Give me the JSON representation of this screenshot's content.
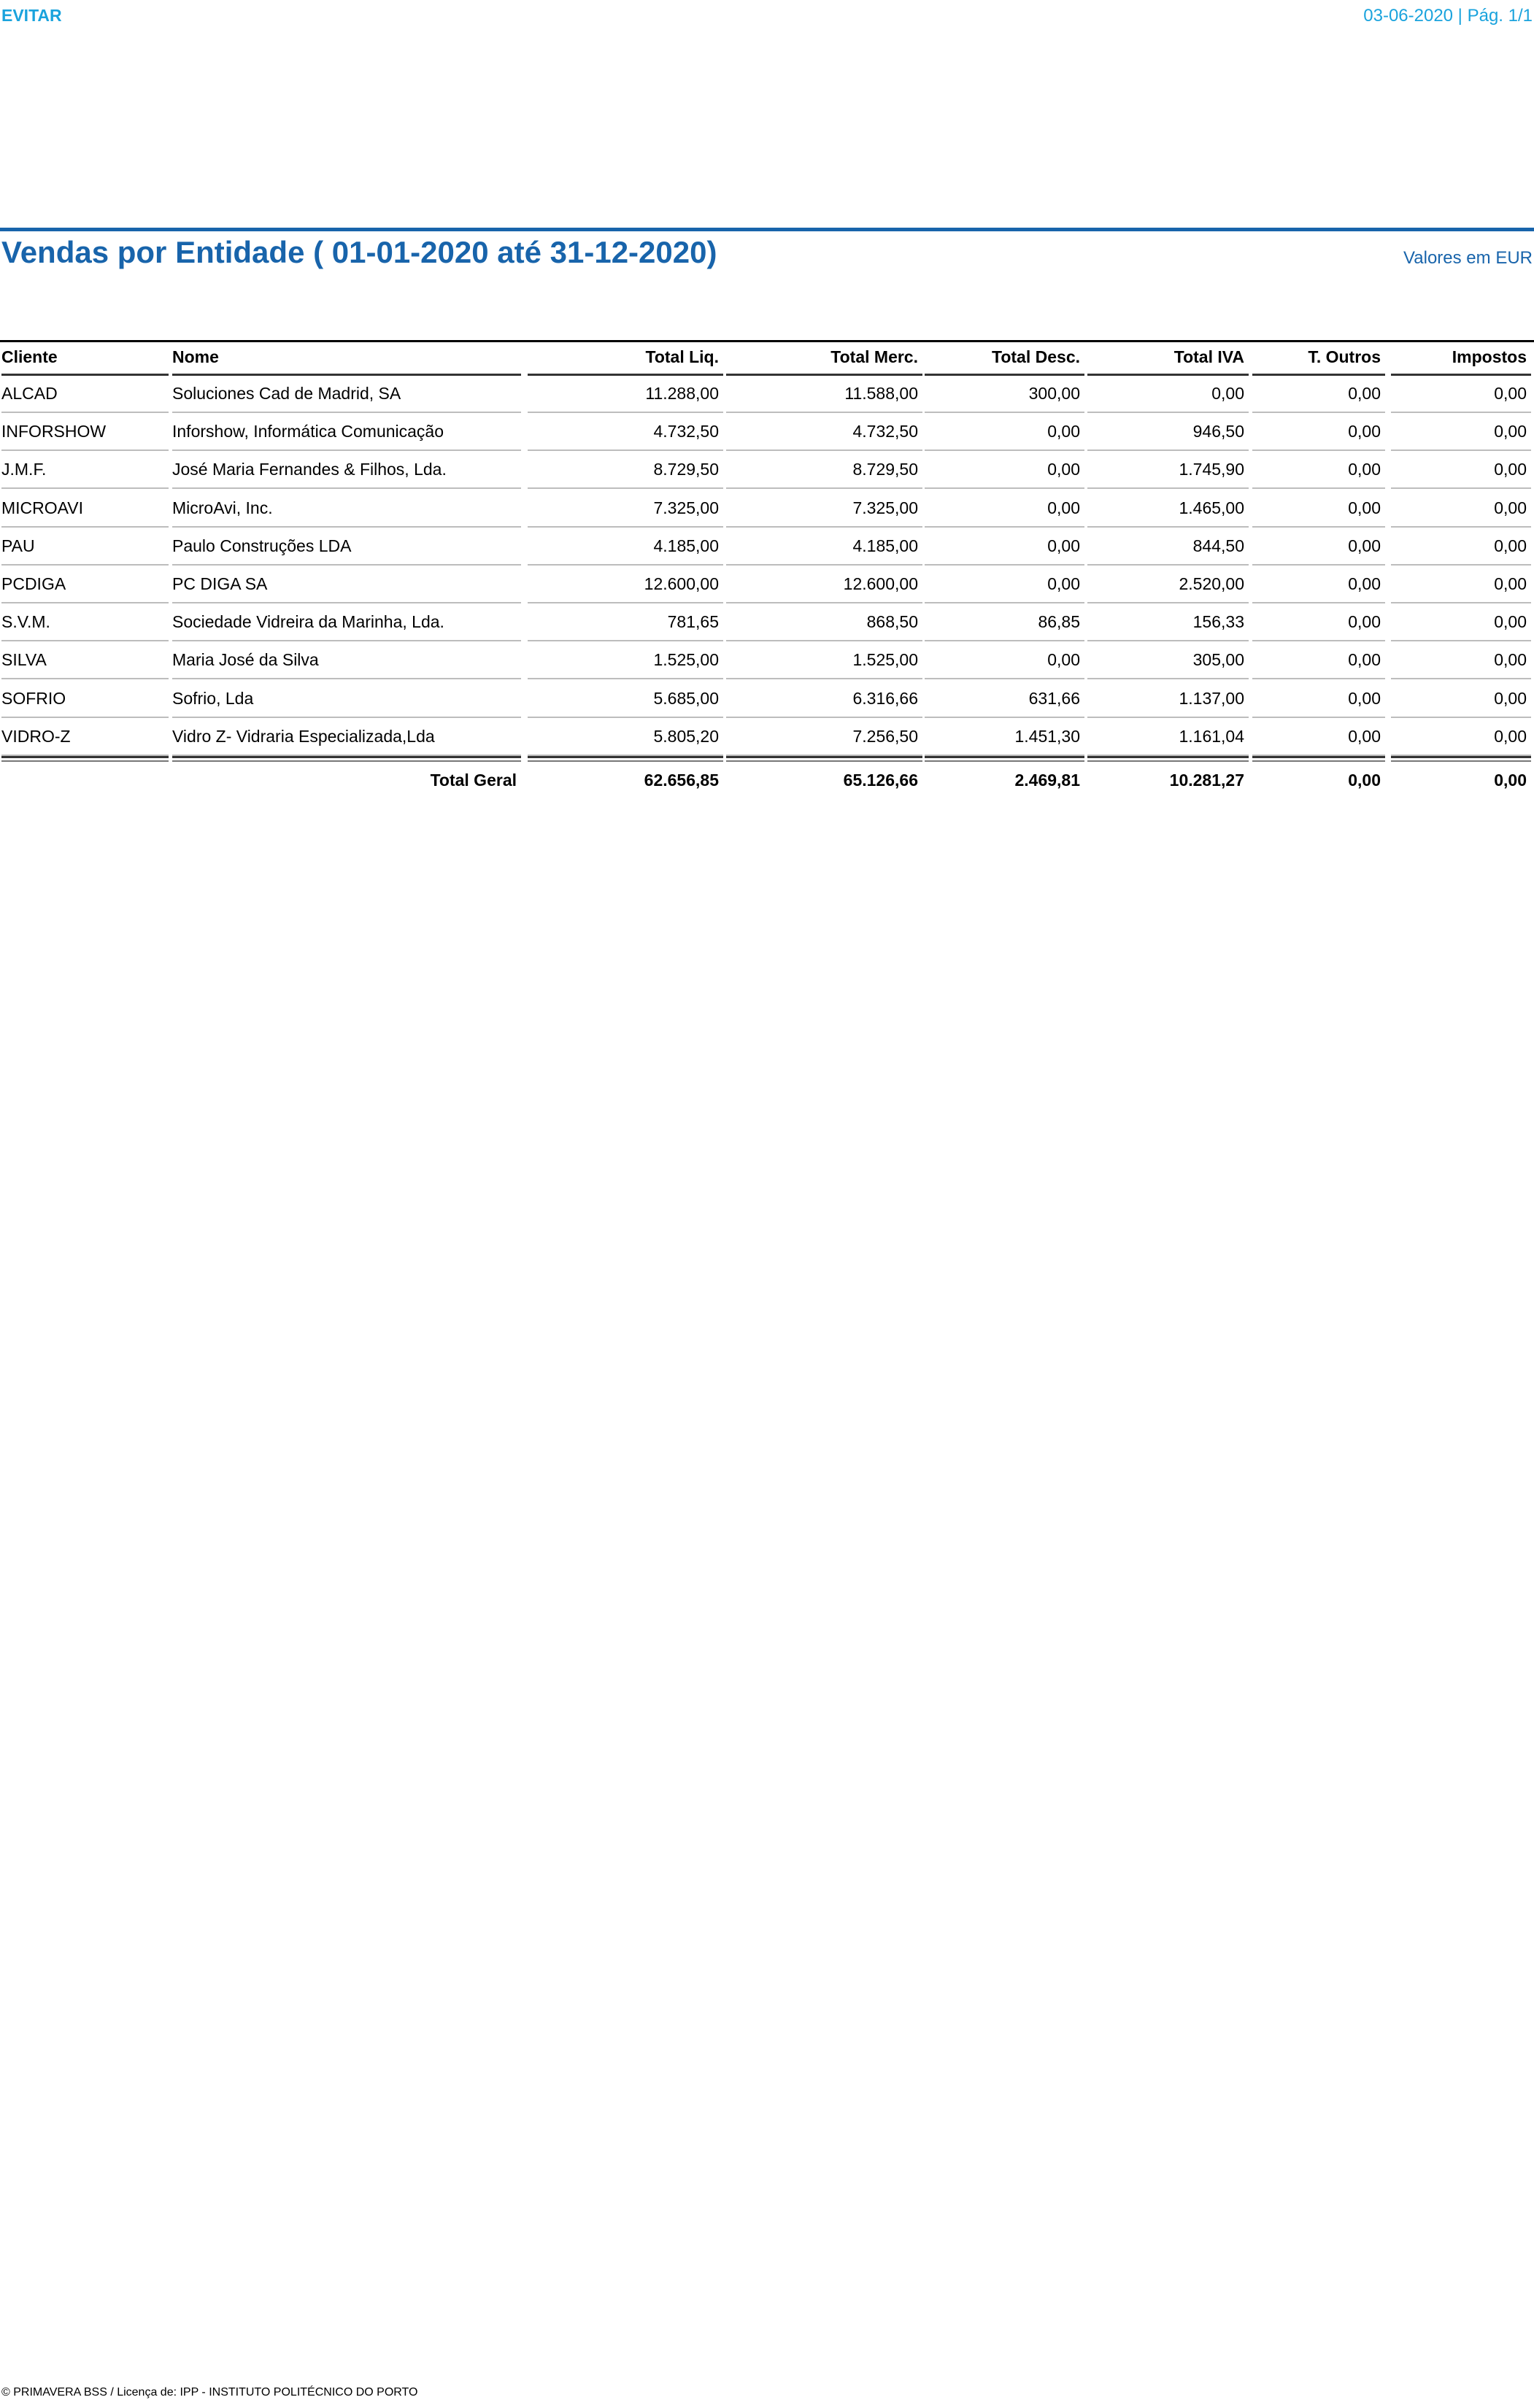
{
  "header": {
    "left_label": "EVITAR",
    "right_label": "03-06-2020 | Pág. 1/1"
  },
  "report": {
    "title": "Vendas por Entidade ( 01-01-2020 até 31-12-2020)",
    "currency_note": "Valores em EUR"
  },
  "table": {
    "columns": [
      "Cliente",
      "Nome",
      "Total Liq.",
      "Total Merc.",
      "Total Desc.",
      "Total IVA",
      "T. Outros",
      "Impostos"
    ],
    "rows": [
      [
        "ALCAD",
        "Soluciones Cad de Madrid, SA",
        "11.288,00",
        "11.588,00",
        "300,00",
        "0,00",
        "0,00",
        "0,00"
      ],
      [
        "INFORSHOW",
        "Inforshow, Informática Comunicação",
        "4.732,50",
        "4.732,50",
        "0,00",
        "946,50",
        "0,00",
        "0,00"
      ],
      [
        "J.M.F.",
        "José Maria Fernandes & Filhos, Lda.",
        "8.729,50",
        "8.729,50",
        "0,00",
        "1.745,90",
        "0,00",
        "0,00"
      ],
      [
        "MICROAVI",
        "MicroAvi, Inc.",
        "7.325,00",
        "7.325,00",
        "0,00",
        "1.465,00",
        "0,00",
        "0,00"
      ],
      [
        "PAU",
        "Paulo Construções LDA",
        "4.185,00",
        "4.185,00",
        "0,00",
        "844,50",
        "0,00",
        "0,00"
      ],
      [
        "PCDIGA",
        "PC DIGA SA",
        "12.600,00",
        "12.600,00",
        "0,00",
        "2.520,00",
        "0,00",
        "0,00"
      ],
      [
        "S.V.M.",
        "Sociedade Vidreira da Marinha, Lda.",
        "781,65",
        "868,50",
        "86,85",
        "156,33",
        "0,00",
        "0,00"
      ],
      [
        "SILVA",
        "Maria José da Silva",
        "1.525,00",
        "1.525,00",
        "0,00",
        "305,00",
        "0,00",
        "0,00"
      ],
      [
        "SOFRIO",
        "Sofrio, Lda",
        "5.685,00",
        "6.316,66",
        "631,66",
        "1.137,00",
        "0,00",
        "0,00"
      ],
      [
        "VIDRO-Z",
        "Vidro Z- Vidraria Especializada,Lda",
        "5.805,20",
        "7.256,50",
        "1.451,30",
        "1.161,04",
        "0,00",
        "0,00"
      ]
    ],
    "total": {
      "label": "Total Geral",
      "values": [
        "62.656,85",
        "65.126,66",
        "2.469,81",
        "10.281,27",
        "0,00",
        "0,00"
      ]
    }
  },
  "footer": {
    "text": "© PRIMAVERA BSS / Licença de: IPP - INSTITUTO POLITÉCNICO DO PORTO"
  }
}
